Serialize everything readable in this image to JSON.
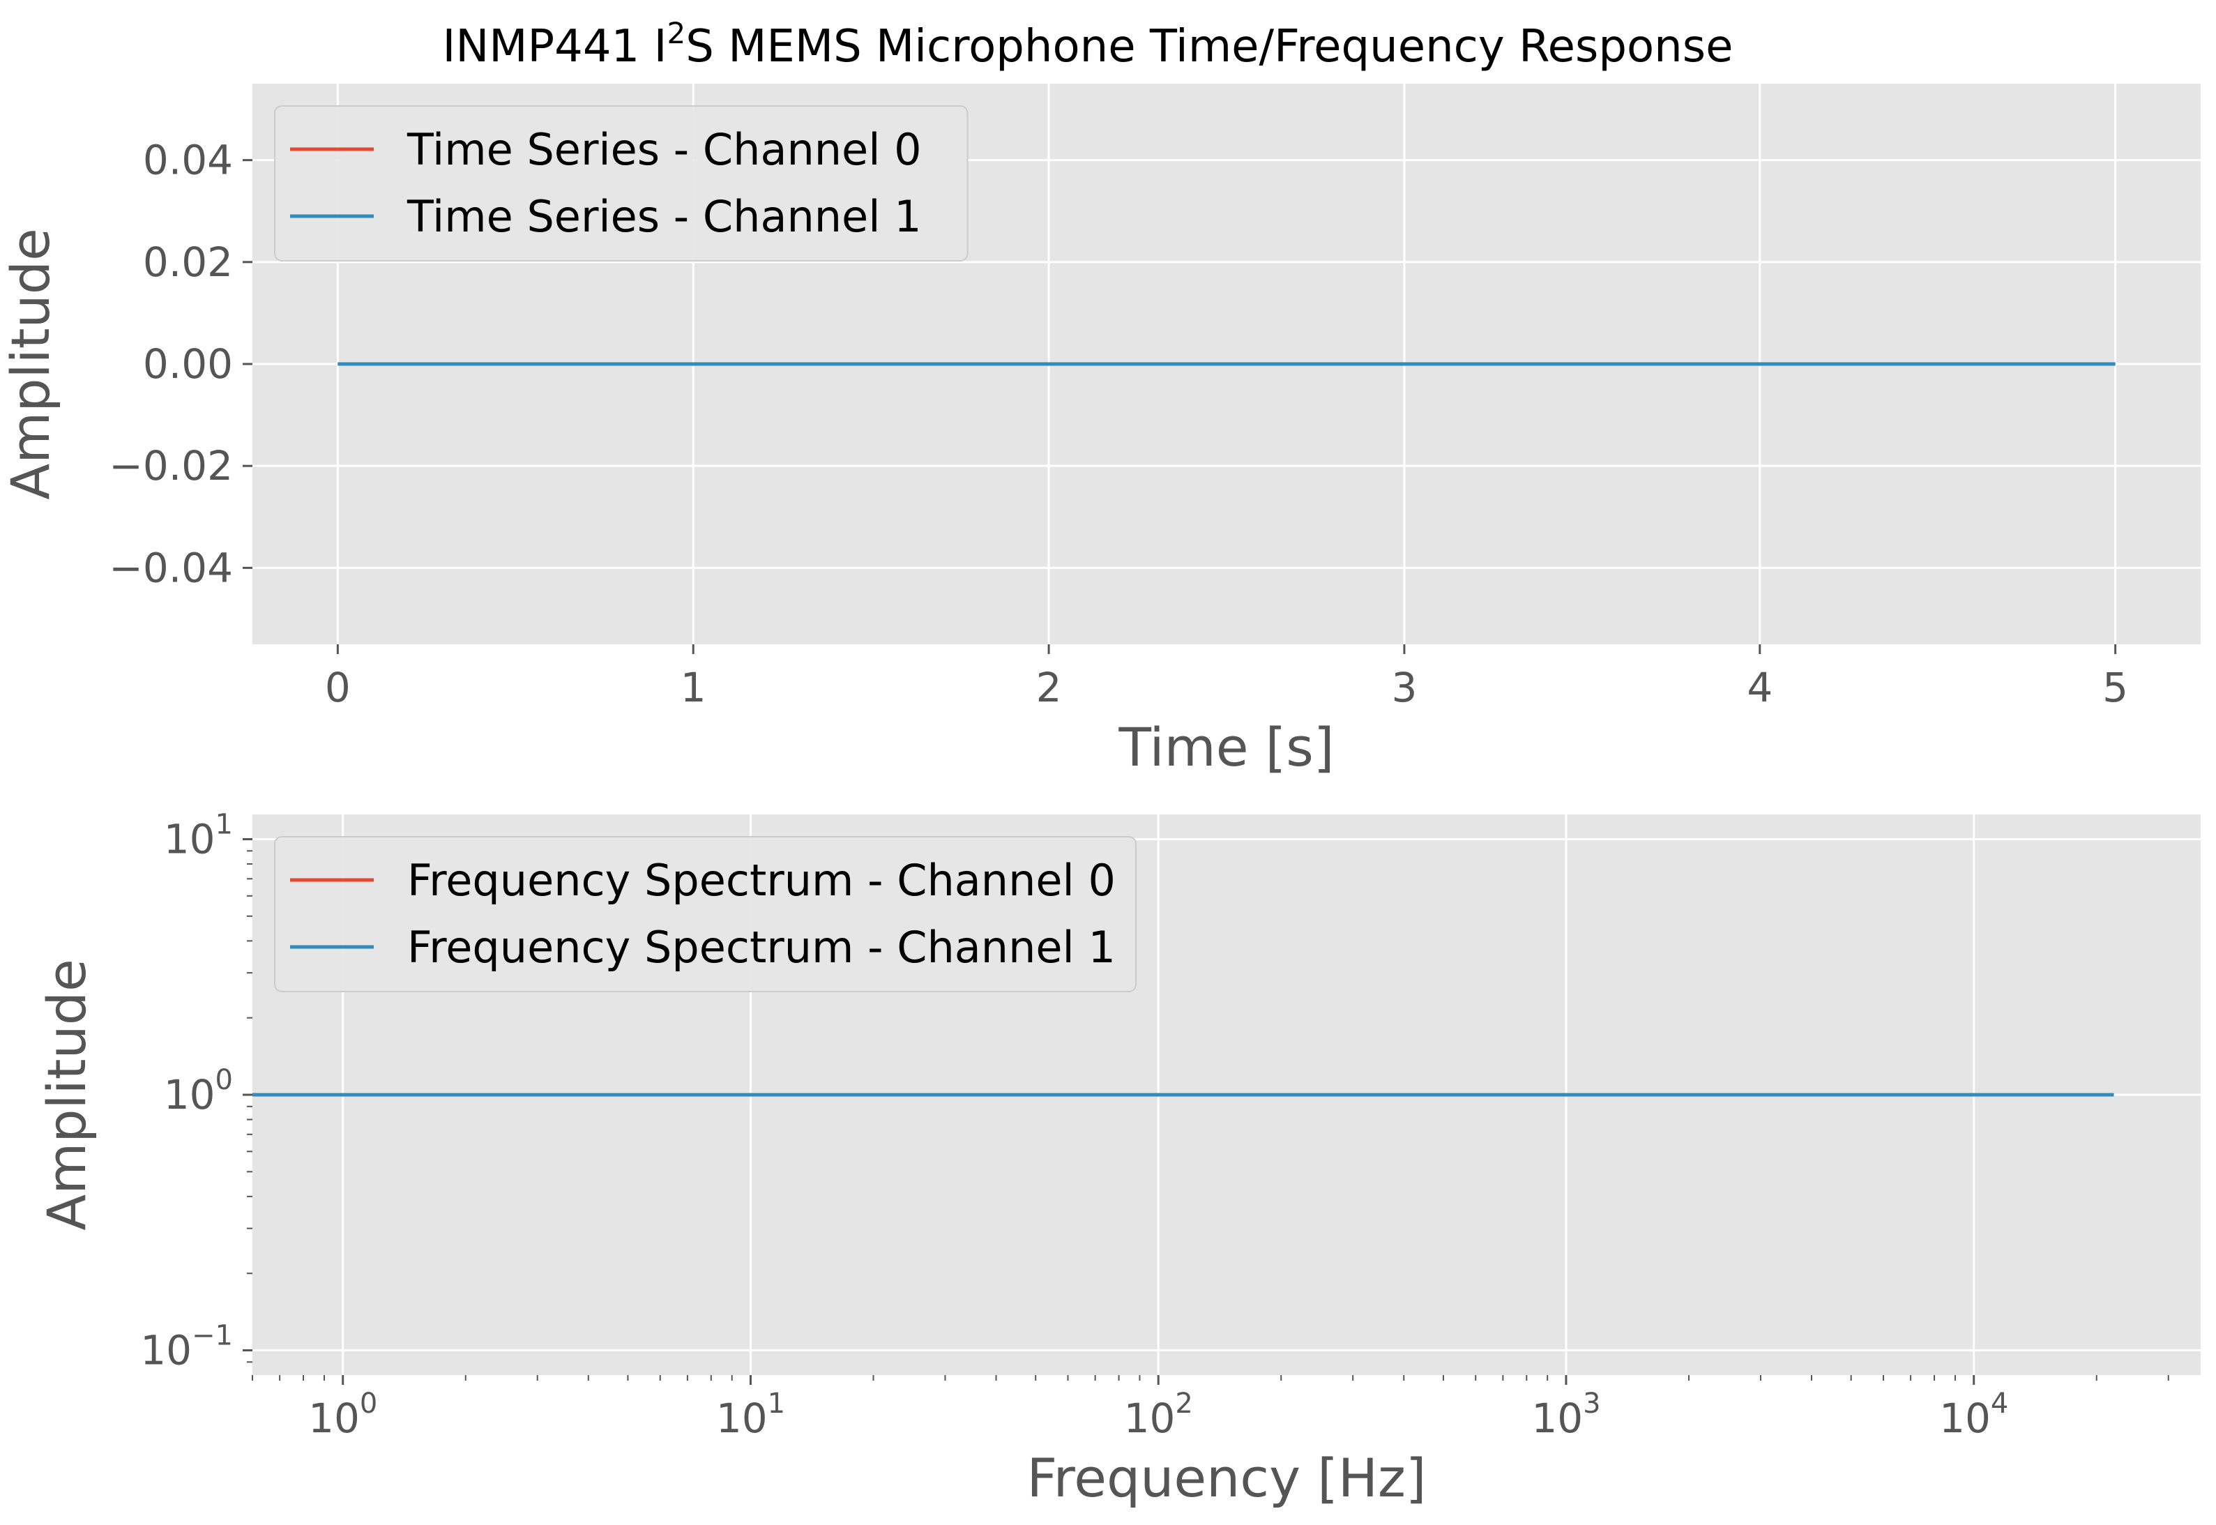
{
  "figure": {
    "title_prefix": "INMP441 I",
    "title_sup": "2",
    "title_suffix": "S MEMS Microphone Time/Frequency Response",
    "colors": {
      "panel_bg": "#e5e5e5",
      "grid": "#ffffff",
      "channel0": "#e24a33",
      "channel1": "#348abd",
      "tick_text": "#555555"
    }
  },
  "chart_data": [
    {
      "type": "line",
      "title": "INMP441 I2S MEMS Microphone Time/Frequency Response",
      "xlabel": "Time [s]",
      "ylabel": "Amplitude",
      "xscale": "linear",
      "yscale": "linear",
      "xlim": [
        -0.24,
        5.24
      ],
      "ylim": [
        -0.055,
        0.055
      ],
      "xticks": [
        0,
        1,
        2,
        3,
        4,
        5
      ],
      "xtick_labels": [
        "0",
        "1",
        "2",
        "3",
        "4",
        "5"
      ],
      "yticks": [
        0.04,
        0.02,
        0.0,
        -0.02,
        -0.04
      ],
      "ytick_labels": [
        "0.04",
        "0.02",
        "0.00",
        "−0.02",
        "−0.04"
      ],
      "legend_position": "upper left",
      "series": [
        {
          "name": "Time Series - Channel 0",
          "color": "#e24a33",
          "x": [
            0,
            5
          ],
          "y": [
            0,
            0
          ]
        },
        {
          "name": "Time Series - Channel 1",
          "color": "#348abd",
          "x": [
            0,
            5
          ],
          "y": [
            0,
            0
          ]
        }
      ]
    },
    {
      "type": "line",
      "xlabel": "Frequency [Hz]",
      "ylabel": "Amplitude",
      "xscale": "log",
      "yscale": "log",
      "xlim": [
        0.6,
        36000
      ],
      "ylim": [
        0.08,
        12.5
      ],
      "xticks": [
        1,
        10,
        100,
        1000,
        10000
      ],
      "xtick_labels": [
        {
          "base": "10",
          "exp": "0"
        },
        {
          "base": "10",
          "exp": "1"
        },
        {
          "base": "10",
          "exp": "2"
        },
        {
          "base": "10",
          "exp": "3"
        },
        {
          "base": "10",
          "exp": "4"
        }
      ],
      "yticks": [
        10,
        1,
        0.1
      ],
      "ytick_labels": [
        {
          "base": "10",
          "exp": "1"
        },
        {
          "base": "10",
          "exp": "0"
        },
        {
          "base": "10",
          "exp": "−1"
        }
      ],
      "legend_position": "upper left",
      "series": [
        {
          "name": "Frequency Spectrum - Channel 0",
          "color": "#e24a33",
          "x": [
            0.6,
            22050
          ],
          "y": [
            1,
            1
          ]
        },
        {
          "name": "Frequency Spectrum - Channel 1",
          "color": "#348abd",
          "x": [
            0.6,
            22050
          ],
          "y": [
            1,
            1
          ]
        }
      ]
    }
  ]
}
